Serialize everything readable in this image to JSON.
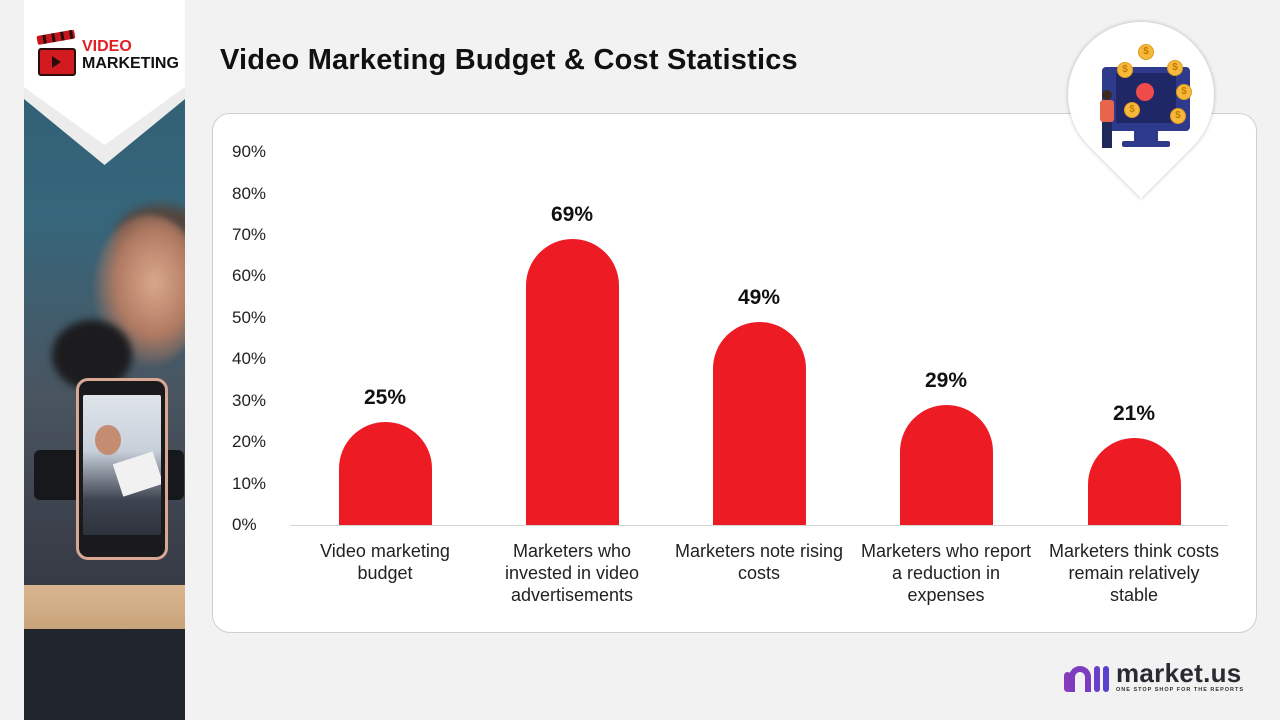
{
  "brand": {
    "logo_line1": "VIDEO",
    "logo_line2": "MARKETING",
    "footer_name": "market.us",
    "footer_tagline": "ONE STOP SHOP FOR THE REPORTS",
    "accent_color": "#ed1c24"
  },
  "header": {
    "title": "Video Marketing Budget & Cost Statistics"
  },
  "icons": {
    "pin_coin_symbol": "$"
  },
  "chart": {
    "y_ticks": [
      "90%",
      "80%",
      "70%",
      "60%",
      "50%",
      "40%",
      "30%",
      "20%",
      "10%",
      "0%"
    ],
    "bar_labels": [
      "25%",
      "69%",
      "49%",
      "29%",
      "21%"
    ],
    "categories": [
      "Video marketing budget",
      "Marketers who invested in video advertisements",
      "Marketers note rising costs",
      "Marketers who report a reduction in expenses",
      "Marketers think costs remain relatively stable"
    ]
  },
  "chart_data": {
    "type": "bar",
    "title": "Video Marketing Budget & Cost Statistics",
    "xlabel": "",
    "ylabel": "",
    "categories": [
      "Video marketing budget",
      "Marketers who invested in video advertisements",
      "Marketers note rising costs",
      "Marketers who report a reduction in expenses",
      "Marketers think costs remain relatively stable"
    ],
    "values": [
      25,
      69,
      49,
      29,
      21
    ],
    "value_format": "percent",
    "ylim": [
      0,
      90
    ],
    "y_ticks": [
      0,
      10,
      20,
      30,
      40,
      50,
      60,
      70,
      80,
      90
    ],
    "grid": false,
    "legend": null,
    "bar_color": "#ed1c24",
    "data_labels": true
  }
}
